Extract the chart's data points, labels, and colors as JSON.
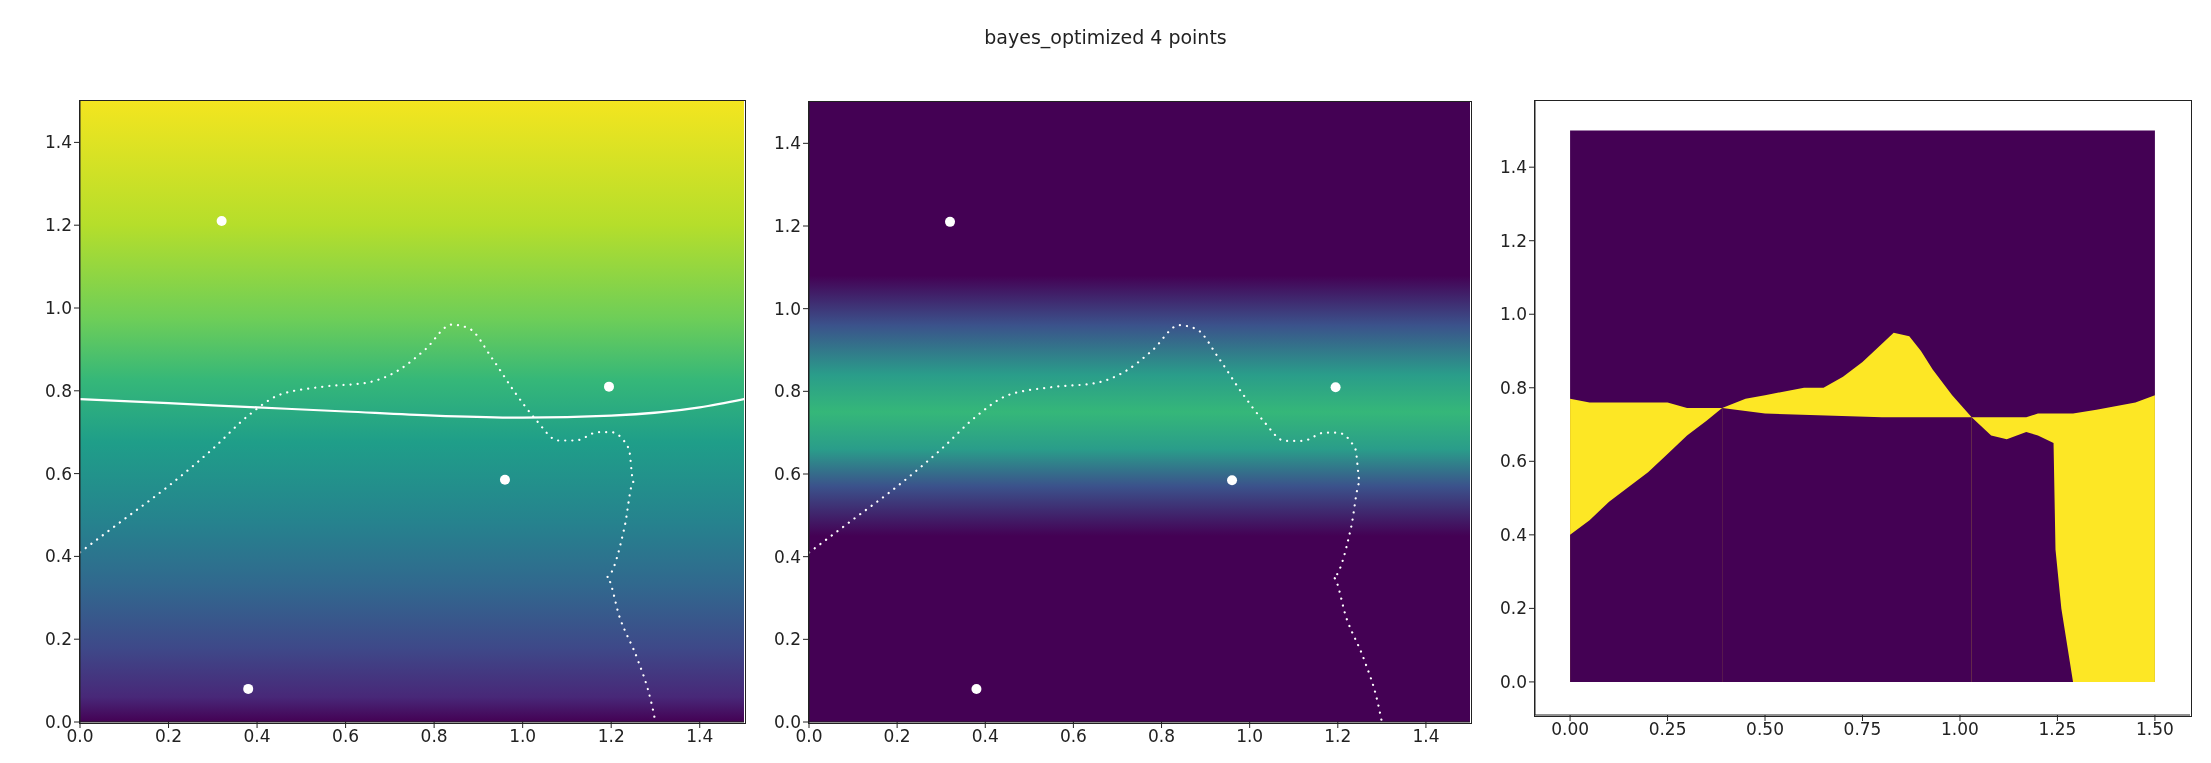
{
  "chart_data": [
    {
      "type": "scatter",
      "xlim": [
        0,
        1.5
      ],
      "ylim": [
        0,
        1.5
      ],
      "xticks": [
        {
          "value": 0,
          "label": "0.0"
        },
        {
          "value": 0.2,
          "label": "0.2"
        },
        {
          "value": 0.4,
          "label": "0.4"
        },
        {
          "value": 0.6,
          "label": "0.6"
        },
        {
          "value": 0.8,
          "label": "0.8"
        },
        {
          "value": 1.0,
          "label": "1.0"
        },
        {
          "value": 1.2,
          "label": "1.2"
        },
        {
          "value": 1.4,
          "label": "1.4"
        }
      ],
      "yticks": [
        {
          "value": 0,
          "label": "0.0"
        },
        {
          "value": 0.2,
          "label": "0.2"
        },
        {
          "value": 0.4,
          "label": "0.4"
        },
        {
          "value": 0.6,
          "label": "0.6"
        },
        {
          "value": 0.8,
          "label": "0.8"
        },
        {
          "value": 1.0,
          "label": "1.0"
        },
        {
          "value": 1.2,
          "label": "1.2"
        },
        {
          "value": 1.4,
          "label": "1.4"
        }
      ],
      "series": [
        {
          "type": "line",
          "line_style": "dotted",
          "color": "#ffffff",
          "x": [
            0,
            0.1,
            0.2,
            0.3,
            0.38,
            0.45,
            0.55,
            0.65,
            0.72,
            0.78,
            0.84,
            0.88,
            0.93,
            0.98,
            1.03,
            1.08,
            1.12,
            1.17,
            1.2,
            1.24,
            1.25,
            1.23,
            1.19,
            1.22,
            1.26,
            1.29,
            1.3
          ],
          "values": [
            0.41,
            0.49,
            0.57,
            0.66,
            0.74,
            0.79,
            0.81,
            0.82,
            0.85,
            0.9,
            0.96,
            0.95,
            0.88,
            0.8,
            0.73,
            0.68,
            0.68,
            0.7,
            0.7,
            0.66,
            0.58,
            0.47,
            0.35,
            0.25,
            0.15,
            0.05,
            0.0
          ]
        },
        {
          "type": "line",
          "line_style": "solid",
          "color": "#ffffff",
          "x": [
            0,
            0.2,
            0.4,
            0.6,
            0.8,
            1.0,
            1.2,
            1.4,
            1.5
          ],
          "values": [
            0.78,
            0.77,
            0.76,
            0.75,
            0.74,
            0.735,
            0.74,
            0.76,
            0.78
          ]
        },
        {
          "type": "scatter",
          "marker": "circle",
          "color": "#ffffff",
          "x": [
            0.32,
            0.38,
            0.96,
            1.195
          ],
          "values": [
            1.21,
            0.08,
            0.585,
            0.81
          ]
        }
      ]
    },
    {
      "type": "scatter",
      "title": "bayes_optimized 4 points",
      "xlim": [
        0,
        1.5
      ],
      "ylim": [
        0,
        1.5
      ],
      "xticks": [
        {
          "value": 0,
          "label": "0.0"
        },
        {
          "value": 0.2,
          "label": "0.2"
        },
        {
          "value": 0.4,
          "label": "0.4"
        },
        {
          "value": 0.6,
          "label": "0.6"
        },
        {
          "value": 0.8,
          "label": "0.8"
        },
        {
          "value": 1.0,
          "label": "1.0"
        },
        {
          "value": 1.2,
          "label": "1.2"
        },
        {
          "value": 1.4,
          "label": "1.4"
        }
      ],
      "yticks": [
        {
          "value": 0,
          "label": "0.0"
        },
        {
          "value": 0.2,
          "label": "0.2"
        },
        {
          "value": 0.4,
          "label": "0.4"
        },
        {
          "value": 0.6,
          "label": "0.6"
        },
        {
          "value": 0.8,
          "label": "0.8"
        },
        {
          "value": 1.0,
          "label": "1.0"
        },
        {
          "value": 1.2,
          "label": "1.2"
        },
        {
          "value": 1.4,
          "label": "1.4"
        }
      ],
      "series": [
        {
          "type": "line",
          "line_style": "dotted",
          "color": "#ffffff",
          "x": [
            0,
            0.1,
            0.2,
            0.3,
            0.38,
            0.45,
            0.55,
            0.65,
            0.72,
            0.78,
            0.84,
            0.88,
            0.93,
            0.98,
            1.03,
            1.08,
            1.12,
            1.17,
            1.2,
            1.24,
            1.25,
            1.23,
            1.19,
            1.22,
            1.26,
            1.29,
            1.3
          ],
          "values": [
            0.41,
            0.49,
            0.57,
            0.66,
            0.74,
            0.79,
            0.81,
            0.82,
            0.85,
            0.9,
            0.96,
            0.95,
            0.88,
            0.8,
            0.73,
            0.68,
            0.68,
            0.7,
            0.7,
            0.66,
            0.58,
            0.47,
            0.35,
            0.25,
            0.15,
            0.05,
            0.0
          ]
        },
        {
          "type": "scatter",
          "marker": "circle",
          "color": "#ffffff",
          "x": [
            0.32,
            0.38,
            0.96,
            1.195
          ],
          "values": [
            1.21,
            0.08,
            0.585,
            0.81
          ]
        }
      ]
    },
    {
      "type": "area",
      "xlim": [
        -0.09,
        1.59
      ],
      "ylim": [
        -0.09,
        1.58
      ],
      "xticks": [
        {
          "value": 0,
          "label": "0.00"
        },
        {
          "value": 0.25,
          "label": "0.25"
        },
        {
          "value": 0.5,
          "label": "0.50"
        },
        {
          "value": 0.75,
          "label": "0.75"
        },
        {
          "value": 1.0,
          "label": "1.00"
        },
        {
          "value": 1.25,
          "label": "1.25"
        },
        {
          "value": 1.5,
          "label": "1.50"
        }
      ],
      "yticks": [
        {
          "value": 0,
          "label": "0.0"
        },
        {
          "value": 0.2,
          "label": "0.2"
        },
        {
          "value": 0.4,
          "label": "0.4"
        },
        {
          "value": 0.6,
          "label": "0.6"
        },
        {
          "value": 0.8,
          "label": "0.8"
        },
        {
          "value": 1.0,
          "label": "1.0"
        },
        {
          "value": 1.2,
          "label": "1.2"
        },
        {
          "value": 1.4,
          "label": "1.4"
        }
      ],
      "series": [
        {
          "color": "#440154",
          "x": [
            0,
            1.5
          ],
          "values": [
            1.5,
            1.5
          ]
        },
        {
          "color": "#fde725",
          "x": [
            0,
            0.05,
            0.1,
            0.15,
            0.2,
            0.25,
            0.3,
            0.35,
            0.39
          ],
          "values": [
            0.77,
            0.76,
            0.76,
            0.76,
            0.76,
            0.76,
            0.745,
            0.745,
            0.745
          ]
        },
        {
          "color": "#fde725",
          "x": [
            0.39,
            0.45,
            0.5,
            0.6,
            0.65,
            0.7,
            0.75,
            0.8,
            0.83,
            0.87,
            0.9,
            0.93,
            0.98,
            1.03
          ],
          "values": [
            0.745,
            0.77,
            0.78,
            0.8,
            0.8,
            0.83,
            0.87,
            0.92,
            0.95,
            0.94,
            0.9,
            0.85,
            0.78,
            0.72
          ]
        },
        {
          "color": "#fde725",
          "x": [
            1.03,
            1.08,
            1.12,
            1.17,
            1.2,
            1.24,
            1.245,
            1.26,
            1.29,
            1.35,
            1.45,
            1.5
          ],
          "values": [
            0.72,
            0.72,
            0.72,
            0.72,
            0.73,
            0.73,
            0.73,
            0.73,
            0.73,
            0.74,
            0.76,
            0.78
          ]
        },
        {
          "color": "#440154",
          "x": [
            0,
            0.05,
            0.1,
            0.15,
            0.2,
            0.25,
            0.3,
            0.35,
            0.39
          ],
          "values": [
            0.4,
            0.44,
            0.49,
            0.53,
            0.57,
            0.62,
            0.67,
            0.71,
            0.745
          ]
        },
        {
          "color": "#440154",
          "x": [
            0.39,
            0.5,
            0.8,
            1.03
          ],
          "values": [
            0.745,
            0.73,
            0.72,
            0.72
          ]
        },
        {
          "color": "#440154",
          "x": [
            1.03,
            1.08,
            1.12,
            1.17,
            1.2,
            1.24,
            1.245,
            1.26,
            1.29
          ],
          "values": [
            0.72,
            0.67,
            0.66,
            0.68,
            0.67,
            0.65,
            0.36,
            0.2,
            0.0
          ]
        }
      ]
    }
  ]
}
